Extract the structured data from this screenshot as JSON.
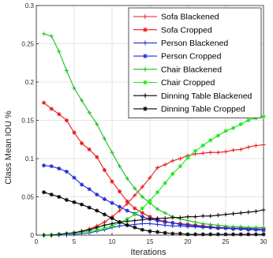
{
  "chart_data": {
    "type": "line",
    "xlabel": "Iterations",
    "ylabel": "Class Mean IOU %",
    "xlim": [
      0,
      30
    ],
    "ylim": [
      0,
      0.3
    ],
    "xticks": [
      0,
      5,
      10,
      15,
      20,
      25,
      30
    ],
    "yticks": [
      0,
      0.05,
      0.1,
      0.15,
      0.2,
      0.25,
      0.3
    ],
    "ytick_labels": [
      "0",
      "0.05",
      "0.1",
      "0.15",
      "0.2",
      "0.25",
      "0.3"
    ],
    "grid": true,
    "legend_position": "top-right",
    "x": [
      1,
      2,
      3,
      4,
      5,
      6,
      7,
      8,
      9,
      10,
      11,
      12,
      13,
      14,
      15,
      16,
      17,
      18,
      19,
      20,
      21,
      22,
      23,
      24,
      25,
      26,
      27,
      28,
      29,
      30
    ],
    "series": [
      {
        "name": "Sofa Blackened",
        "color": "#e8191b",
        "marker": "plus",
        "values": [
          0,
          0,
          0.001,
          0.002,
          0.003,
          0.005,
          0.008,
          0.012,
          0.017,
          0.024,
          0.032,
          0.041,
          0.052,
          0.063,
          0.075,
          0.088,
          0.092,
          0.097,
          0.1,
          0.104,
          0.106,
          0.107,
          0.108,
          0.108,
          0.109,
          0.111,
          0.112,
          0.115,
          0.117,
          0.118
        ]
      },
      {
        "name": "Sofa Cropped",
        "color": "#e8191b",
        "marker": "star",
        "values": [
          0.173,
          0.165,
          0.158,
          0.15,
          0.134,
          0.12,
          0.112,
          0.102,
          0.085,
          0.07,
          0.057,
          0.044,
          0.035,
          0.029,
          0.024,
          0.02,
          0.018,
          0.016,
          0.015,
          0.014,
          0.013,
          0.012,
          0.011,
          0.01,
          0.01,
          0.009,
          0.009,
          0.008,
          0.008,
          0.008
        ]
      },
      {
        "name": "Person Blackened",
        "color": "#1f2bd8",
        "marker": "plus",
        "values": [
          0,
          0,
          0,
          0,
          0.001,
          0.002,
          0.003,
          0.005,
          0.007,
          0.01,
          0.012,
          0.013,
          0.014,
          0.015,
          0.015,
          0.014,
          0.013,
          0.012,
          0.012,
          0.011,
          0.011,
          0.01,
          0.01,
          0.01,
          0.009,
          0.009,
          0.009,
          0.009,
          0.008,
          0.008
        ]
      },
      {
        "name": "Person Cropped",
        "color": "#1f2bd8",
        "marker": "star",
        "values": [
          0.091,
          0.09,
          0.087,
          0.083,
          0.075,
          0.066,
          0.06,
          0.053,
          0.047,
          0.042,
          0.037,
          0.032,
          0.028,
          0.024,
          0.021,
          0.019,
          0.017,
          0.016,
          0.014,
          0.013,
          0.012,
          0.011,
          0.01,
          0.009,
          0.009,
          0.008,
          0.008,
          0.007,
          0.007,
          0.006
        ]
      },
      {
        "name": "Chair Blackened",
        "color": "#19c119",
        "marker": "plus",
        "values": [
          0.263,
          0.26,
          0.24,
          0.215,
          0.192,
          0.176,
          0.16,
          0.145,
          0.126,
          0.108,
          0.09,
          0.074,
          0.061,
          0.05,
          0.042,
          0.034,
          0.029,
          0.024,
          0.021,
          0.019,
          0.017,
          0.015,
          0.014,
          0.013,
          0.012,
          0.011,
          0.011,
          0.01,
          0.01,
          0.01
        ]
      },
      {
        "name": "Chair Cropped",
        "color": "#19e819",
        "marker": "star",
        "values": [
          0,
          0,
          0.001,
          0.002,
          0.003,
          0.004,
          0.005,
          0.007,
          0.009,
          0.012,
          0.016,
          0.021,
          0.027,
          0.035,
          0.045,
          0.056,
          0.068,
          0.08,
          0.09,
          0.101,
          0.11,
          0.117,
          0.124,
          0.13,
          0.136,
          0.14,
          0.145,
          0.15,
          0.153,
          0.155
        ]
      },
      {
        "name": "Dinning Table Blackened",
        "color": "#000000",
        "marker": "plus",
        "values": [
          0,
          0,
          0.001,
          0.002,
          0.003,
          0.005,
          0.007,
          0.01,
          0.013,
          0.015,
          0.017,
          0.018,
          0.019,
          0.02,
          0.021,
          0.022,
          0.022,
          0.023,
          0.023,
          0.024,
          0.024,
          0.025,
          0.025,
          0.026,
          0.027,
          0.028,
          0.029,
          0.03,
          0.031,
          0.033
        ]
      },
      {
        "name": "Dinning Table Cropped",
        "color": "#000000",
        "marker": "star",
        "values": [
          0.056,
          0.053,
          0.05,
          0.046,
          0.043,
          0.04,
          0.036,
          0.032,
          0.027,
          0.022,
          0.017,
          0.013,
          0.01,
          0.007,
          0.005,
          0.004,
          0.003,
          0.002,
          0.002,
          0.001,
          0.001,
          0.001,
          0.001,
          0.001,
          0.001,
          0.001,
          0.001,
          0.001,
          0.001,
          0.001
        ]
      }
    ]
  }
}
